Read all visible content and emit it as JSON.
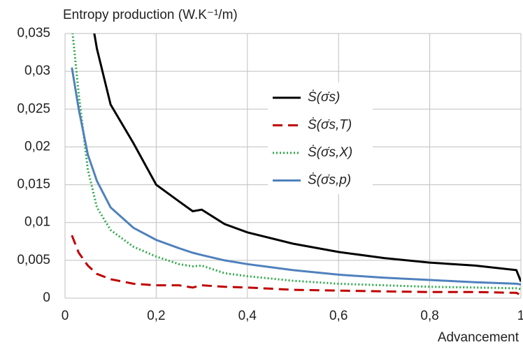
{
  "chart_data": {
    "type": "line",
    "title": "Entropy production  (W.K⁻¹/m)",
    "x_label": "Advancement",
    "x": [
      0.015,
      0.03,
      0.05,
      0.07,
      0.1,
      0.15,
      0.2,
      0.25,
      0.28,
      0.3,
      0.35,
      0.4,
      0.5,
      0.6,
      0.7,
      0.8,
      0.9,
      0.99,
      1.0
    ],
    "series": [
      {
        "name": "Ṡ(σ̇s)",
        "color": "#000000",
        "style": "solid",
        "values": [
          null,
          null,
          0.04,
          0.033,
          0.0256,
          0.0205,
          0.015,
          0.0128,
          0.0115,
          0.0117,
          0.0098,
          0.0087,
          0.0072,
          0.0061,
          0.0053,
          0.0047,
          0.0043,
          0.0037,
          0.0022
        ]
      },
      {
        "name": "Ṡ(σ̇s,T)",
        "color": "#c00000",
        "style": "dashed",
        "values": [
          0.0083,
          0.006,
          0.0043,
          0.0032,
          0.0025,
          0.0019,
          0.0017,
          0.0017,
          0.0014,
          0.0017,
          0.0015,
          0.0014,
          0.0011,
          0.001,
          0.0009,
          0.0008,
          0.0008,
          0.0007,
          0.0004
        ]
      },
      {
        "name": "Ṡ(σ̇s,X)",
        "color": "#2eaa4a",
        "style": "dotted",
        "values": [
          0.036,
          0.027,
          0.017,
          0.012,
          0.009,
          0.0068,
          0.0055,
          0.0045,
          0.0042,
          0.0043,
          0.0033,
          0.0029,
          0.0023,
          0.0019,
          0.0017,
          0.0015,
          0.0014,
          0.0013,
          0.0012
        ]
      },
      {
        "name": "Ṡ(σ̇s,p)",
        "color": "#4f81bd",
        "style": "solid",
        "values": [
          0.0305,
          0.025,
          0.019,
          0.0155,
          0.012,
          0.0093,
          0.0077,
          0.0066,
          0.006,
          0.0057,
          0.005,
          0.0045,
          0.0037,
          0.0031,
          0.0027,
          0.0024,
          0.0021,
          0.0019,
          0.0018
        ]
      }
    ],
    "xlim": [
      0,
      1
    ],
    "xticks": [
      0,
      {
        "value": 0.2,
        "label": "0,2"
      },
      {
        "value": 0.4,
        "label": "0,4"
      },
      {
        "value": 0.6,
        "label": "0,6"
      },
      {
        "value": 0.8,
        "label": "0,8"
      },
      1
    ],
    "ylim": [
      0,
      0.035
    ],
    "yticks": [
      0,
      {
        "value": 0.005,
        "label": "0,005"
      },
      {
        "value": 0.01,
        "label": "0,01"
      },
      {
        "value": 0.015,
        "label": "0,015"
      },
      {
        "value": 0.02,
        "label": "0,02"
      },
      {
        "value": 0.025,
        "label": "0,025"
      },
      {
        "value": 0.03,
        "label": "0,03"
      },
      {
        "value": 0.035,
        "label": "0,035"
      }
    ],
    "grid": true
  }
}
